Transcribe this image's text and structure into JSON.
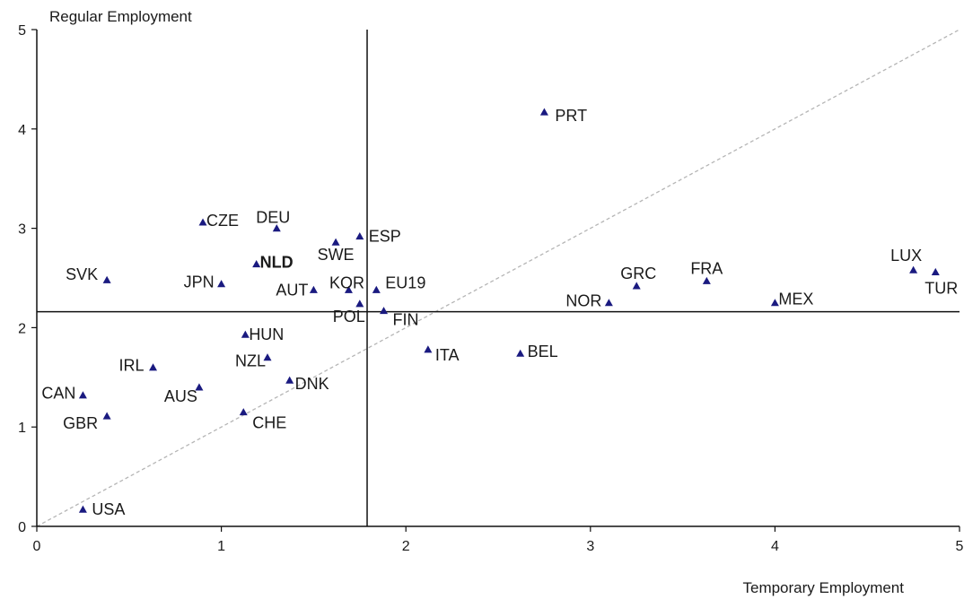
{
  "chart_data": {
    "type": "scatter",
    "xlabel": "Temporary Employment",
    "ylabel": "Regular Employment",
    "xlim": [
      0,
      5
    ],
    "ylim": [
      0,
      5
    ],
    "xticks": [
      "0",
      "1",
      "2",
      "3",
      "4",
      "5"
    ],
    "yticks": [
      "0",
      "1",
      "2",
      "3",
      "4",
      "5"
    ],
    "reference_lines": {
      "vertical_x": 1.79,
      "horizontal_y": 2.16,
      "diagonal": "y = x (dashed grey)"
    },
    "marker": "triangle",
    "marker_color": "#1a1a80",
    "points": [
      {
        "label": "USA",
        "x": 0.25,
        "y": 0.17
      },
      {
        "label": "CAN",
        "x": 0.25,
        "y": 1.32
      },
      {
        "label": "GBR",
        "x": 0.38,
        "y": 1.11
      },
      {
        "label": "SVK",
        "x": 0.38,
        "y": 2.48
      },
      {
        "label": "IRL",
        "x": 0.63,
        "y": 1.6
      },
      {
        "label": "AUS",
        "x": 0.88,
        "y": 1.4
      },
      {
        "label": "CZE",
        "x": 0.9,
        "y": 3.06
      },
      {
        "label": "JPN",
        "x": 1.0,
        "y": 2.44
      },
      {
        "label": "CHE",
        "x": 1.12,
        "y": 1.15
      },
      {
        "label": "HUN",
        "x": 1.13,
        "y": 1.93
      },
      {
        "label": "NLD",
        "x": 1.19,
        "y": 2.64
      },
      {
        "label": "NZL",
        "x": 1.25,
        "y": 1.7
      },
      {
        "label": "DEU",
        "x": 1.3,
        "y": 3.0
      },
      {
        "label": "DNK",
        "x": 1.37,
        "y": 1.47
      },
      {
        "label": "AUT",
        "x": 1.5,
        "y": 2.38
      },
      {
        "label": "SWE",
        "x": 1.62,
        "y": 2.86
      },
      {
        "label": "KOR",
        "x": 1.69,
        "y": 2.38
      },
      {
        "label": "ESP",
        "x": 1.75,
        "y": 2.92
      },
      {
        "label": "POL",
        "x": 1.75,
        "y": 2.24
      },
      {
        "label": "EU19",
        "x": 1.84,
        "y": 2.38
      },
      {
        "label": "FIN",
        "x": 1.88,
        "y": 2.17
      },
      {
        "label": "ITA",
        "x": 2.12,
        "y": 1.78
      },
      {
        "label": "BEL",
        "x": 2.62,
        "y": 1.74
      },
      {
        "label": "PRT",
        "x": 2.75,
        "y": 4.17
      },
      {
        "label": "NOR",
        "x": 3.1,
        "y": 2.25
      },
      {
        "label": "GRC",
        "x": 3.25,
        "y": 2.42
      },
      {
        "label": "FRA",
        "x": 3.63,
        "y": 2.47
      },
      {
        "label": "MEX",
        "x": 4.0,
        "y": 2.25
      },
      {
        "label": "LUX",
        "x": 4.75,
        "y": 2.58
      },
      {
        "label": "TUR",
        "x": 4.87,
        "y": 2.56
      }
    ]
  }
}
